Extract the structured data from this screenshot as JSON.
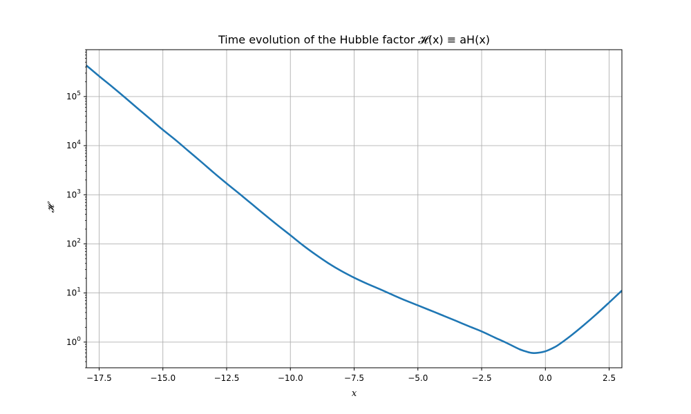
{
  "chart_data": {
    "type": "line",
    "title": "Time evolution of the Hubble factor 𝓗(x) ≡ aH(x)",
    "xlabel": "x",
    "ylabel": "𝓗",
    "xlim": [
      -18.0,
      3.0
    ],
    "ylim": [
      0.3,
      900000
    ],
    "yscale": "log",
    "grid": true,
    "line_color": "#1f77b4",
    "x_ticks": [
      -17.5,
      -15.0,
      -12.5,
      -10.0,
      -7.5,
      -5.0,
      -2.5,
      0.0,
      2.5
    ],
    "x_tick_labels": [
      "−17.5",
      "−15.0",
      "−12.5",
      "−10.0",
      "−7.5",
      "−5.0",
      "−2.5",
      "0.0",
      "2.5"
    ],
    "y_ticks": [
      1,
      10,
      100,
      1000,
      10000,
      100000
    ],
    "y_tick_base": "10",
    "y_tick_exponents": [
      "0",
      "1",
      "2",
      "3",
      "4",
      "5"
    ],
    "series": [
      {
        "x": [
          -18.0,
          -17.5,
          -17.0,
          -16.5,
          -16.0,
          -15.5,
          -15.0,
          -14.5,
          -14.0,
          -13.5,
          -13.0,
          -12.5,
          -12.0,
          -11.5,
          -11.0,
          -10.5,
          -10.0,
          -9.5,
          -9.0,
          -8.5,
          -8.0,
          -7.5,
          -7.0,
          -6.5,
          -6.0,
          -5.5,
          -5.0,
          -4.5,
          -4.0,
          -3.5,
          -3.0,
          -2.5,
          -2.0,
          -1.5,
          -1.0,
          -0.7,
          -0.5,
          -0.3,
          0.0,
          0.3,
          0.5,
          1.0,
          1.5,
          2.0,
          2.5,
          3.0
        ],
        "y": [
          430000,
          260000,
          160000,
          97000,
          58000,
          35000,
          21000,
          13000,
          7800,
          4700,
          2800,
          1700,
          1050,
          640,
          390,
          240,
          150,
          93,
          60,
          40,
          28,
          20.5,
          15.5,
          12,
          9.2,
          7.1,
          5.6,
          4.4,
          3.45,
          2.7,
          2.1,
          1.65,
          1.25,
          0.95,
          0.71,
          0.63,
          0.6,
          0.605,
          0.65,
          0.76,
          0.87,
          1.35,
          2.2,
          3.7,
          6.4,
          11.2
        ]
      }
    ]
  }
}
